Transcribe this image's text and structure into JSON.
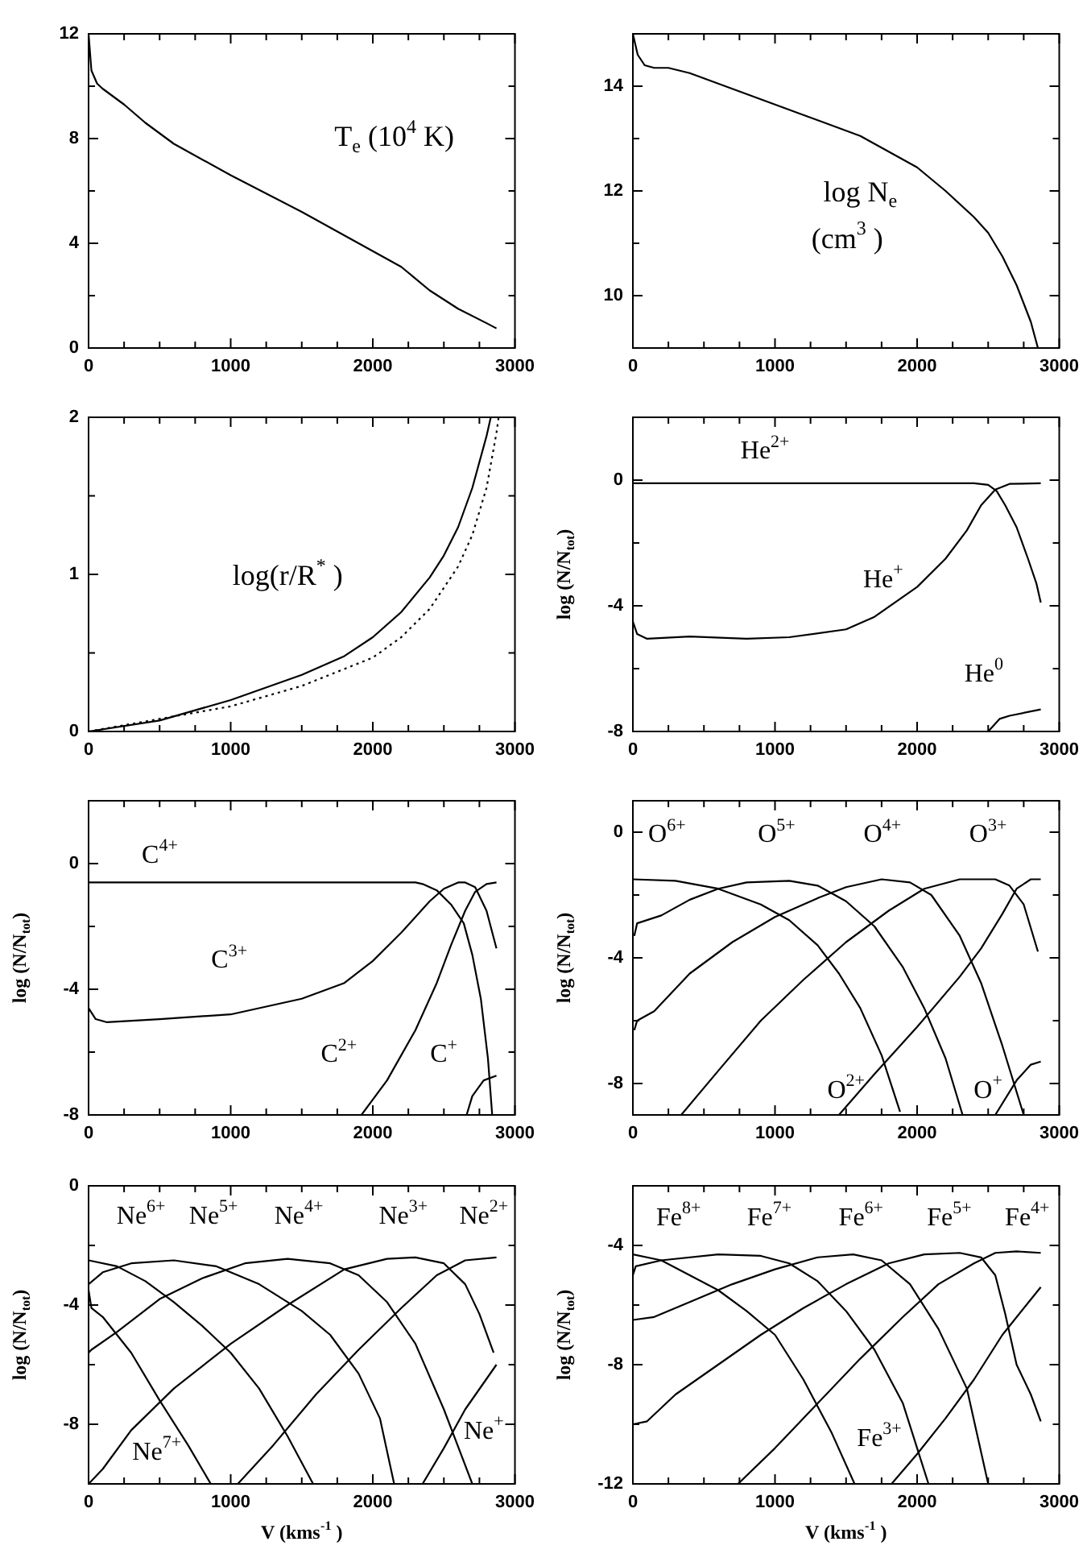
{
  "chart_data": [
    {
      "type": "line",
      "xlim": [
        0,
        3000
      ],
      "ylim": [
        0,
        12
      ],
      "xticks": [
        0,
        {
          "value": 250,
          "label": null
        },
        {
          "value": 500,
          "label": null
        },
        {
          "value": 750,
          "label": null
        },
        1000,
        {
          "value": 1250,
          "label": null
        },
        {
          "value": 1500,
          "label": null
        },
        {
          "value": 1750,
          "label": null
        },
        2000,
        {
          "value": 2250,
          "label": null
        },
        {
          "value": 2500,
          "label": null
        },
        {
          "value": 2750,
          "label": null
        },
        3000
      ],
      "yticks": [
        0,
        {
          "value": 2,
          "label": null
        },
        4,
        {
          "value": 6,
          "label": null
        },
        8,
        {
          "value": 10,
          "label": null
        },
        12
      ],
      "series": [
        {
          "color": "#000000",
          "x": [
            0,
            20,
            60,
            100,
            250,
            400,
            600,
            1000,
            1500,
            2000,
            2200,
            2400,
            2600,
            2800,
            2870
          ],
          "values": [
            12,
            10.6,
            10.1,
            9.9,
            9.3,
            8.6,
            7.8,
            6.6,
            5.2,
            3.7,
            3.1,
            2.2,
            1.5,
            0.95,
            0.75
          ]
        }
      ],
      "annotations": [
        "T$_{e}$ (10$^{4}$ K)"
      ]
    },
    {
      "type": "line",
      "xlim": [
        0,
        3000
      ],
      "ylim": [
        9,
        15
      ],
      "xticks": [
        0,
        {
          "value": 250,
          "label": null
        },
        {
          "value": 500,
          "label": null
        },
        {
          "value": 750,
          "label": null
        },
        1000,
        {
          "value": 1250,
          "label": null
        },
        {
          "value": 1500,
          "label": null
        },
        {
          "value": 1750,
          "label": null
        },
        2000,
        {
          "value": 2250,
          "label": null
        },
        {
          "value": 2500,
          "label": null
        },
        {
          "value": 2750,
          "label": null
        },
        3000
      ],
      "yticks": [
        {
          "value": 9,
          "label": null
        },
        10,
        {
          "value": 11,
          "label": null
        },
        12,
        {
          "value": 13,
          "label": null
        },
        14,
        {
          "value": 15,
          "label": null
        }
      ],
      "series": [
        {
          "color": "#000000",
          "x": [
            0,
            34,
            83,
            150,
            250,
            400,
            800,
            1200,
            1600,
            2000,
            2200,
            2400,
            2500,
            2600,
            2700,
            2800,
            2850
          ],
          "values": [
            15,
            14.6,
            14.4,
            14.35,
            14.35,
            14.25,
            13.85,
            13.45,
            13.05,
            12.45,
            12.0,
            11.5,
            11.2,
            10.75,
            10.2,
            9.5,
            9.0
          ]
        }
      ],
      "annotations": [
        "log N$_{e}$",
        "(cm$^{3}$ )"
      ]
    },
    {
      "type": "line",
      "xlim": [
        0,
        3000
      ],
      "ylim": [
        0,
        2
      ],
      "xticks": [
        0,
        {
          "value": 250,
          "label": null
        },
        {
          "value": 500,
          "label": null
        },
        {
          "value": 750,
          "label": null
        },
        1000,
        {
          "value": 1250,
          "label": null
        },
        {
          "value": 1500,
          "label": null
        },
        {
          "value": 1750,
          "label": null
        },
        2000,
        {
          "value": 2250,
          "label": null
        },
        {
          "value": 2500,
          "label": null
        },
        {
          "value": 2750,
          "label": null
        },
        3000
      ],
      "yticks": [
        0,
        {
          "value": 0.5,
          "label": null
        },
        1,
        {
          "value": 1.5,
          "label": null
        },
        2
      ],
      "series": [
        {
          "color": "#000000",
          "line_style": "solid",
          "x": [
            0,
            500,
            1000,
            1500,
            1800,
            2000,
            2200,
            2400,
            2500,
            2600,
            2700,
            2800,
            2830
          ],
          "values": [
            0,
            0.07,
            0.2,
            0.36,
            0.48,
            0.6,
            0.76,
            0.98,
            1.12,
            1.3,
            1.55,
            1.88,
            2.0
          ]
        },
        {
          "color": "#000000",
          "line_style": "dotted",
          "x": [
            0,
            1000,
            1500,
            2000,
            2200,
            2400,
            2600,
            2700,
            2800,
            2870,
            2885
          ],
          "values": [
            0,
            0.16,
            0.29,
            0.47,
            0.6,
            0.78,
            1.05,
            1.25,
            1.55,
            1.9,
            2.0
          ]
        }
      ],
      "annotations": [
        "log(r/R$^{*}$ )"
      ]
    },
    {
      "type": "line",
      "xlim": [
        0,
        3000
      ],
      "ylim": [
        -8,
        2
      ],
      "ylabel": "log (N/N$_{tot}$)",
      "xticks": [
        0,
        {
          "value": 250,
          "label": null
        },
        {
          "value": 500,
          "label": null
        },
        {
          "value": 750,
          "label": null
        },
        1000,
        {
          "value": 1250,
          "label": null
        },
        {
          "value": 1500,
          "label": null
        },
        {
          "value": 1750,
          "label": null
        },
        2000,
        {
          "value": 2250,
          "label": null
        },
        {
          "value": 2500,
          "label": null
        },
        {
          "value": 2750,
          "label": null
        },
        3000
      ],
      "yticks": [
        -8,
        {
          "value": -6,
          "label": null
        },
        -4,
        {
          "value": -2,
          "label": null
        },
        0,
        {
          "value": 2,
          "label": null
        }
      ],
      "series": [
        {
          "color": "#000000",
          "x": [
            0,
            1000,
            2000,
            2400,
            2500,
            2560,
            2620,
            2700,
            2780,
            2840,
            2870
          ],
          "values": [
            -0.1,
            -0.1,
            -0.1,
            -0.1,
            -0.15,
            -0.35,
            -0.8,
            -1.5,
            -2.5,
            -3.3,
            -3.9
          ]
        },
        {
          "color": "#000000",
          "x": [
            0,
            30,
            100,
            400,
            800,
            1100,
            1500,
            1700,
            2000,
            2200,
            2350,
            2450,
            2550,
            2650,
            2870
          ],
          "values": [
            -4.5,
            -4.9,
            -5.05,
            -4.98,
            -5.05,
            -5.0,
            -4.75,
            -4.35,
            -3.4,
            -2.5,
            -1.6,
            -0.8,
            -0.3,
            -0.12,
            -0.1
          ]
        },
        {
          "color": "#000000",
          "x": [
            2500,
            2580,
            2650,
            2870
          ],
          "values": [
            -8,
            -7.6,
            -7.5,
            -7.3
          ]
        }
      ],
      "annotations": [
        "He$^{2+}$",
        "He$^{+}$",
        "He$^{0}$"
      ]
    },
    {
      "type": "line",
      "xlim": [
        0,
        3000
      ],
      "ylim": [
        -8,
        2
      ],
      "ylabel": "log (N/N$_{tot}$)",
      "xticks": [
        0,
        {
          "value": 250,
          "label": null
        },
        {
          "value": 500,
          "label": null
        },
        {
          "value": 750,
          "label": null
        },
        1000,
        {
          "value": 1250,
          "label": null
        },
        {
          "value": 1500,
          "label": null
        },
        {
          "value": 1750,
          "label": null
        },
        2000,
        {
          "value": 2250,
          "label": null
        },
        {
          "value": 2500,
          "label": null
        },
        {
          "value": 2750,
          "label": null
        },
        3000
      ],
      "yticks": [
        -8,
        {
          "value": -6,
          "label": null
        },
        -4,
        {
          "value": -2,
          "label": null
        },
        0,
        {
          "value": 2,
          "label": null
        }
      ],
      "series": [
        {
          "color": "#000000",
          "x": [
            0,
            1000,
            2300,
            2350,
            2450,
            2550,
            2640,
            2700,
            2760,
            2810,
            2840
          ],
          "values": [
            -0.6,
            -0.6,
            -0.6,
            -0.65,
            -0.85,
            -1.3,
            -1.9,
            -2.9,
            -4.3,
            -6.2,
            -8
          ]
        },
        {
          "color": "#000000",
          "x": [
            0,
            50,
            130,
            500,
            1000,
            1500,
            1800,
            2000,
            2200,
            2400,
            2500,
            2600,
            2650,
            2720,
            2800,
            2870
          ],
          "values": [
            -4.6,
            -4.95,
            -5.05,
            -4.95,
            -4.8,
            -4.3,
            -3.8,
            -3.1,
            -2.2,
            -1.2,
            -0.8,
            -0.6,
            -0.6,
            -0.75,
            -1.5,
            -2.7
          ]
        },
        {
          "color": "#000000",
          "x": [
            1920,
            2100,
            2300,
            2450,
            2550,
            2650,
            2720,
            2800,
            2870
          ],
          "values": [
            -8,
            -6.9,
            -5.3,
            -3.8,
            -2.6,
            -1.5,
            -0.9,
            -0.65,
            -0.6
          ]
        },
        {
          "color": "#000000",
          "x": [
            2660,
            2700,
            2780,
            2870
          ],
          "values": [
            -8,
            -7.4,
            -6.9,
            -6.75
          ]
        }
      ],
      "annotations": [
        "C$^{4+}$",
        "C$^{3+}$",
        "C$^{2+}$",
        "C$^{+}$"
      ]
    },
    {
      "type": "line",
      "xlim": [
        0,
        3000
      ],
      "ylim": [
        -9,
        1
      ],
      "ylabel": "log (N/N$_{tot}$)",
      "xticks": [
        0,
        {
          "value": 250,
          "label": null
        },
        {
          "value": 500,
          "label": null
        },
        {
          "value": 750,
          "label": null
        },
        1000,
        {
          "value": 1250,
          "label": null
        },
        {
          "value": 1500,
          "label": null
        },
        {
          "value": 1750,
          "label": null
        },
        2000,
        {
          "value": 2250,
          "label": null
        },
        {
          "value": 2500,
          "label": null
        },
        {
          "value": 2750,
          "label": null
        },
        3000
      ],
      "yticks": [
        -8,
        {
          "value": -6,
          "label": null
        },
        -4,
        {
          "value": -2,
          "label": null
        },
        0
      ],
      "series": [
        {
          "color": "#000000",
          "x": [
            0,
            300,
            600,
            900,
            1100,
            1300,
            1450,
            1600,
            1750,
            1880
          ],
          "values": [
            -1.5,
            -1.55,
            -1.8,
            -2.3,
            -2.8,
            -3.6,
            -4.5,
            -5.6,
            -7.1,
            -8.9
          ]
        },
        {
          "color": "#000000",
          "x": [
            10,
            30,
            200,
            400,
            600,
            800,
            1100,
            1300,
            1500,
            1700,
            1900,
            2050,
            2200,
            2320
          ],
          "values": [
            -3.3,
            -2.9,
            -2.65,
            -2.15,
            -1.8,
            -1.6,
            -1.55,
            -1.7,
            -2.2,
            -3.0,
            -4.3,
            -5.6,
            -7.2,
            -9
          ]
        },
        {
          "color": "#000000",
          "x": [
            10,
            30,
            150,
            400,
            700,
            1000,
            1300,
            1500,
            1750,
            1950,
            2100,
            2300,
            2450,
            2600,
            2750
          ],
          "values": [
            -6.3,
            -6.0,
            -5.7,
            -4.5,
            -3.5,
            -2.7,
            -2.1,
            -1.75,
            -1.5,
            -1.6,
            -2.0,
            -3.3,
            -4.8,
            -6.8,
            -9
          ]
        },
        {
          "color": "#000000",
          "x": [
            340,
            600,
            900,
            1200,
            1500,
            1800,
            2050,
            2300,
            2550,
            2650,
            2750,
            2850
          ],
          "values": [
            -9,
            -7.6,
            -6.0,
            -4.7,
            -3.5,
            -2.5,
            -1.8,
            -1.5,
            -1.5,
            -1.7,
            -2.3,
            -3.8
          ]
        },
        {
          "color": "#000000",
          "x": [
            1450,
            1700,
            2000,
            2300,
            2450,
            2600,
            2700,
            2800,
            2870
          ],
          "values": [
            -9,
            -7.7,
            -6.2,
            -4.6,
            -3.7,
            -2.6,
            -1.8,
            -1.5,
            -1.5
          ]
        },
        {
          "color": "#000000",
          "x": [
            2550,
            2700,
            2800,
            2870
          ],
          "values": [
            -9,
            -7.9,
            -7.4,
            -7.3
          ]
        }
      ],
      "annotations": [
        "O$^{6+}$",
        "O$^{5+}$",
        "O$^{4+}$",
        "O$^{3+}$",
        "O$^{2+}$",
        "O$^{+}$"
      ]
    },
    {
      "type": "line",
      "xlim": [
        0,
        3000
      ],
      "ylim": [
        -10,
        0
      ],
      "ylabel": "log (N/N$_{tot}$)",
      "xlabel": "V (kms$^{-1}$ )",
      "xticks": [
        0,
        {
          "value": 250,
          "label": null
        },
        {
          "value": 500,
          "label": null
        },
        {
          "value": 750,
          "label": null
        },
        1000,
        {
          "value": 1250,
          "label": null
        },
        {
          "value": 1500,
          "label": null
        },
        {
          "value": 1750,
          "label": null
        },
        2000,
        {
          "value": 2250,
          "label": null
        },
        {
          "value": 2500,
          "label": null
        },
        {
          "value": 2750,
          "label": null
        },
        3000
      ],
      "yticks": [
        {
          "value": -10,
          "label": null
        },
        -8,
        {
          "value": -6,
          "label": null
        },
        -4,
        {
          "value": -2,
          "label": null
        },
        0
      ],
      "series": [
        {
          "color": "#000000",
          "x": [
            0,
            20,
            100,
            300,
            500,
            700,
            860
          ],
          "values": [
            -3.5,
            -4.1,
            -4.4,
            -5.6,
            -7.2,
            -8.7,
            -10
          ]
        },
        {
          "color": "#000000",
          "x": [
            0,
            200,
            400,
            600,
            800,
            1000,
            1200,
            1400,
            1580
          ],
          "values": [
            -2.5,
            -2.7,
            -3.2,
            -3.9,
            -4.7,
            -5.6,
            -6.8,
            -8.4,
            -10
          ]
        },
        {
          "color": "#000000",
          "x": [
            0,
            100,
            300,
            600,
            900,
            1200,
            1500,
            1700,
            1900,
            2050,
            2150
          ],
          "values": [
            -3.3,
            -2.9,
            -2.6,
            -2.5,
            -2.7,
            -3.3,
            -4.2,
            -5.0,
            -6.3,
            -7.8,
            -10
          ]
        },
        {
          "color": "#000000",
          "x": [
            0,
            20,
            200,
            500,
            800,
            1100,
            1400,
            1700,
            1900,
            2100,
            2300,
            2500,
            2700
          ],
          "values": [
            -5.6,
            -5.5,
            -4.9,
            -3.8,
            -3.1,
            -2.6,
            -2.45,
            -2.6,
            -3.0,
            -3.9,
            -5.3,
            -7.5,
            -10
          ]
        },
        {
          "color": "#000000",
          "x": [
            0,
            100,
            300,
            600,
            1000,
            1400,
            1800,
            2100,
            2300,
            2500,
            2650,
            2750,
            2850
          ],
          "values": [
            -10,
            -9.5,
            -8.2,
            -6.8,
            -5.3,
            -4.0,
            -2.8,
            -2.45,
            -2.4,
            -2.6,
            -3.3,
            -4.3,
            -5.6
          ]
        },
        {
          "color": "#000000",
          "x": [
            1050,
            1300,
            1600,
            1900,
            2200,
            2450,
            2650,
            2870
          ],
          "values": [
            -10,
            -8.7,
            -7.0,
            -5.5,
            -4.1,
            -3.0,
            -2.5,
            -2.4
          ]
        },
        {
          "color": "#000000",
          "x": [
            2350,
            2500,
            2650,
            2870
          ],
          "values": [
            -10,
            -8.8,
            -7.5,
            -6.0
          ]
        }
      ],
      "annotations": [
        "Ne$^{6+}$",
        "Ne$^{5+}$",
        "Ne$^{4+}$",
        "Ne$^{3+}$",
        "Ne$^{2+}$",
        "Ne$^{7+}$",
        "Ne$^{+}$"
      ]
    },
    {
      "type": "line",
      "xlim": [
        0,
        3000
      ],
      "ylim": [
        -12,
        -2
      ],
      "ylabel": "log (N/N$_{tot}$)",
      "xlabel": "V (kms$^{-1}$ )",
      "xticks": [
        0,
        {
          "value": 250,
          "label": null
        },
        {
          "value": 500,
          "label": null
        },
        {
          "value": 750,
          "label": null
        },
        1000,
        {
          "value": 1250,
          "label": null
        },
        {
          "value": 1500,
          "label": null
        },
        {
          "value": 1750,
          "label": null
        },
        2000,
        {
          "value": 2250,
          "label": null
        },
        {
          "value": 2500,
          "label": null
        },
        {
          "value": 2750,
          "label": null
        },
        3000
      ],
      "yticks": [
        -12,
        {
          "value": -10,
          "label": null
        },
        -8,
        {
          "value": -6,
          "label": null
        },
        -4,
        {
          "value": -2,
          "label": null
        }
      ],
      "series": [
        {
          "color": "#000000",
          "x": [
            0,
            200,
            400,
            600,
            800,
            1000,
            1200,
            1400,
            1560
          ],
          "values": [
            -4.3,
            -4.5,
            -5.0,
            -5.5,
            -6.2,
            -7.0,
            -8.5,
            -10.3,
            -12
          ]
        },
        {
          "color": "#000000",
          "x": [
            0,
            20,
            200,
            600,
            900,
            1100,
            1300,
            1500,
            1700,
            1900,
            2080
          ],
          "values": [
            -5.0,
            -4.7,
            -4.5,
            -4.3,
            -4.35,
            -4.6,
            -5.2,
            -6.2,
            -7.5,
            -9.3,
            -12
          ]
        },
        {
          "color": "#000000",
          "x": [
            0,
            150,
            400,
            700,
            1000,
            1300,
            1550,
            1750,
            1950,
            2150,
            2350,
            2500
          ],
          "values": [
            -6.5,
            -6.4,
            -5.9,
            -5.3,
            -4.8,
            -4.4,
            -4.3,
            -4.5,
            -5.3,
            -6.8,
            -8.8,
            -12
          ]
        },
        {
          "color": "#000000",
          "x": [
            0,
            100,
            300,
            600,
            900,
            1200,
            1500,
            1800,
            2050,
            2300,
            2450,
            2550,
            2620,
            2700,
            2800,
            2870
          ],
          "values": [
            -10,
            -9.9,
            -9.0,
            -8.0,
            -7.0,
            -6.1,
            -5.3,
            -4.6,
            -4.3,
            -4.25,
            -4.4,
            -5.0,
            -6.3,
            -8.0,
            -9.0,
            -9.9
          ]
        },
        {
          "color": "#000000",
          "x": [
            740,
            1000,
            1300,
            1600,
            1900,
            2150,
            2400,
            2550,
            2700,
            2870
          ],
          "values": [
            -12,
            -10.8,
            -9.3,
            -7.8,
            -6.4,
            -5.3,
            -4.6,
            -4.25,
            -4.2,
            -4.25
          ]
        },
        {
          "color": "#000000",
          "x": [
            1820,
            2000,
            2200,
            2400,
            2600,
            2870
          ],
          "values": [
            -12,
            -11.0,
            -9.8,
            -8.5,
            -7.0,
            -5.4
          ]
        }
      ],
      "annotations": [
        "Fe$^{8+}$",
        "Fe$^{7+}$",
        "Fe$^{6+}$",
        "Fe$^{5+}$",
        "Fe$^{4+}$",
        "Fe$^{3+}$"
      ]
    }
  ]
}
